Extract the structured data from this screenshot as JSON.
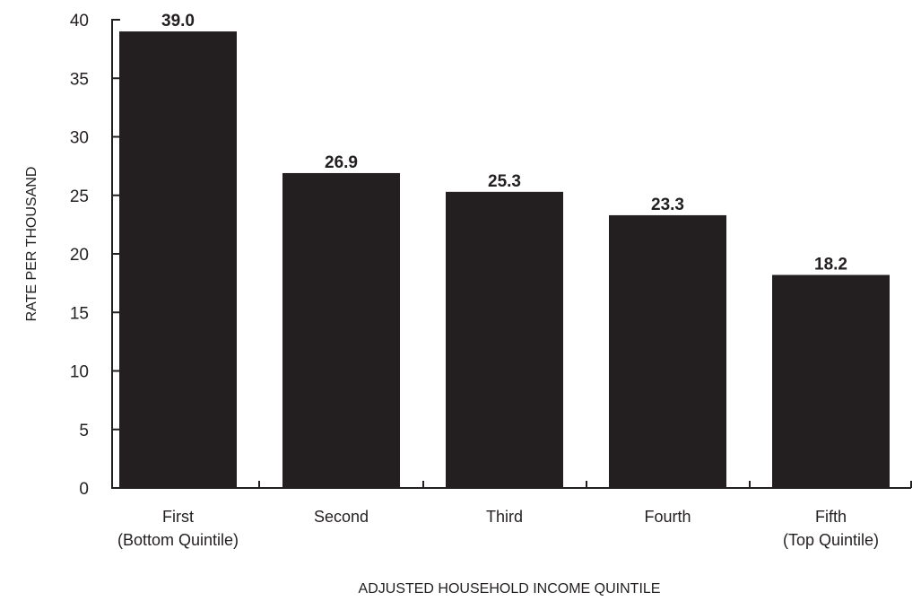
{
  "chart_data": {
    "type": "bar",
    "title": "",
    "xlabel": "ADJUSTED HOUSEHOLD INCOME QUINTILE",
    "ylabel": "RATE PER THOUSAND",
    "ylim": [
      0,
      40
    ],
    "yticks": [
      0,
      5,
      10,
      15,
      20,
      25,
      30,
      35,
      40
    ],
    "categories": [
      [
        "First",
        "(Bottom Quintile)"
      ],
      [
        "Second"
      ],
      [
        "Third"
      ],
      [
        "Fourth"
      ],
      [
        "Fifth",
        "(Top Quintile)"
      ]
    ],
    "values": [
      39.0,
      26.9,
      25.3,
      23.3,
      18.2
    ],
    "value_labels": [
      "39.0",
      "26.9",
      "25.3",
      "23.3",
      "18.2"
    ],
    "grid": false,
    "legend": "none",
    "bar_color": "#231f20",
    "axis_color": "#231f20"
  }
}
